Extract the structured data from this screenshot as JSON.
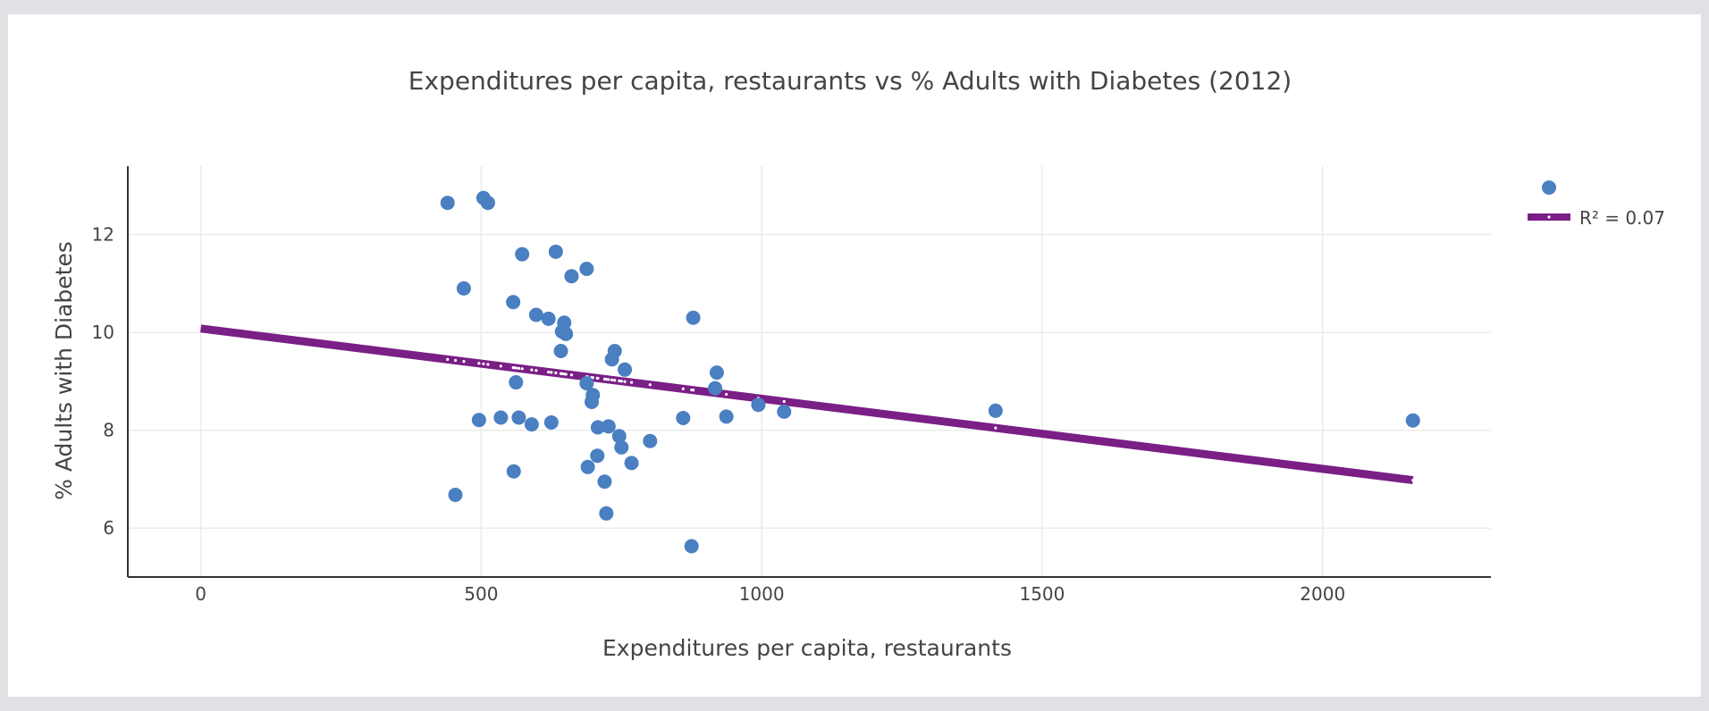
{
  "chart_data": {
    "type": "scatter",
    "title": "Expenditures per capita, restaurants vs % Adults with Diabetes (2012)",
    "xlabel": "Expenditures per capita, restaurants",
    "ylabel": "% Adults with Diabetes",
    "xlim": [
      -130,
      2300
    ],
    "ylim": [
      5.0,
      13.4
    ],
    "x_ticks": [
      0,
      500,
      1000,
      1500,
      2000
    ],
    "y_ticks": [
      6,
      8,
      10,
      12
    ],
    "grid": true,
    "legend_position": "top-right",
    "colors": {
      "points": "#4a7fc1",
      "trendline": "#7a1f86"
    },
    "series": [
      {
        "name": "",
        "kind": "scatter",
        "points": [
          [
            440,
            12.65
          ],
          [
            504,
            12.75
          ],
          [
            512,
            12.65
          ],
          [
            573,
            11.6
          ],
          [
            633,
            11.65
          ],
          [
            688,
            11.3
          ],
          [
            661,
            11.15
          ],
          [
            469,
            10.9
          ],
          [
            557,
            10.62
          ],
          [
            598,
            10.36
          ],
          [
            620,
            10.28
          ],
          [
            648,
            10.2
          ],
          [
            644,
            10.02
          ],
          [
            651,
            9.97
          ],
          [
            642,
            9.62
          ],
          [
            738,
            9.62
          ],
          [
            733,
            9.45
          ],
          [
            756,
            9.24
          ],
          [
            878,
            10.3
          ],
          [
            920,
            9.18
          ],
          [
            562,
            8.98
          ],
          [
            688,
            8.96
          ],
          [
            699,
            8.72
          ],
          [
            697,
            8.58
          ],
          [
            917,
            8.86
          ],
          [
            994,
            8.52
          ],
          [
            1040,
            8.38
          ],
          [
            1417,
            8.4
          ],
          [
            2161,
            8.2
          ],
          [
            496,
            8.21
          ],
          [
            535,
            8.26
          ],
          [
            567,
            8.26
          ],
          [
            590,
            8.12
          ],
          [
            625,
            8.16
          ],
          [
            708,
            8.06
          ],
          [
            727,
            8.08
          ],
          [
            746,
            7.88
          ],
          [
            750,
            7.65
          ],
          [
            801,
            7.78
          ],
          [
            860,
            8.25
          ],
          [
            937,
            8.28
          ],
          [
            707,
            7.48
          ],
          [
            690,
            7.25
          ],
          [
            720,
            6.95
          ],
          [
            768,
            7.33
          ],
          [
            558,
            7.16
          ],
          [
            454,
            6.68
          ],
          [
            723,
            6.3
          ],
          [
            875,
            5.63
          ]
        ]
      },
      {
        "name": "R² = 0.07",
        "kind": "trendline",
        "x": [
          0,
          2161
        ],
        "y": [
          10.08,
          6.98
        ]
      }
    ]
  }
}
